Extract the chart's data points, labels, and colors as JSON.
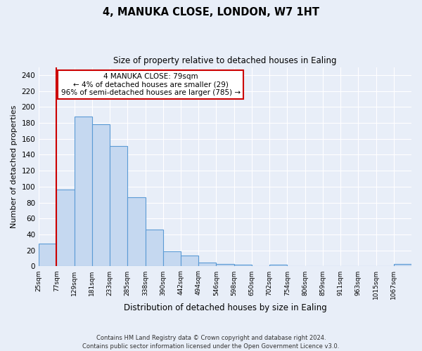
{
  "title1": "4, MANUKA CLOSE, LONDON, W7 1HT",
  "title2": "Size of property relative to detached houses in Ealing",
  "xlabel": "Distribution of detached houses by size in Ealing",
  "ylabel": "Number of detached properties",
  "categories": [
    "25sqm",
    "77sqm",
    "129sqm",
    "181sqm",
    "233sqm",
    "285sqm",
    "338sqm",
    "390sqm",
    "442sqm",
    "494sqm",
    "546sqm",
    "598sqm",
    "650sqm",
    "702sqm",
    "754sqm",
    "806sqm",
    "859sqm",
    "911sqm",
    "963sqm",
    "1015sqm",
    "1067sqm"
  ],
  "bar_values": [
    29,
    96,
    188,
    178,
    151,
    87,
    46,
    19,
    14,
    5,
    3,
    2,
    0,
    2,
    0,
    0,
    0,
    0,
    0,
    0,
    3
  ],
  "ylim": [
    0,
    250
  ],
  "yticks": [
    0,
    20,
    40,
    60,
    80,
    100,
    120,
    140,
    160,
    180,
    200,
    220,
    240
  ],
  "vline_x": 1.0,
  "annotation_text": "4 MANUKA CLOSE: 79sqm\n← 4% of detached houses are smaller (29)\n96% of semi-detached houses are larger (785) →",
  "bar_color": "#c5d8f0",
  "bar_edge_color": "#5b9bd5",
  "vline_color": "#cc0000",
  "annotation_box_color": "#ffffff",
  "annotation_box_edge": "#cc0000",
  "bg_color": "#e8eef8",
  "grid_color": "#ffffff",
  "footer": "Contains HM Land Registry data © Crown copyright and database right 2024.\nContains public sector information licensed under the Open Government Licence v3.0."
}
